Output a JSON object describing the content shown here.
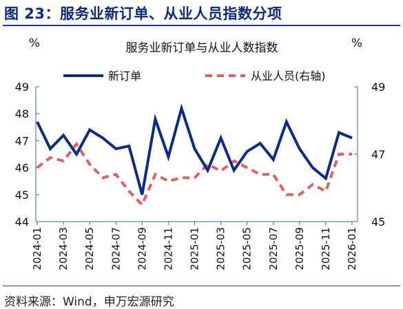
{
  "figure_title": "图 23：服务业新订单、从业人员指数分项",
  "source_note": "资料来源：Wind，申万宏源研究",
  "chart_data": {
    "type": "line",
    "title": "服务业新订单与从业人数指数",
    "left_unit": "%",
    "right_unit": "%",
    "x": [
      "2024-01",
      "2024-02",
      "2024-03",
      "2024-04",
      "2024-05",
      "2024-06",
      "2024-07",
      "2024-08",
      "2024-09",
      "2024-10",
      "2024-11",
      "2024-12",
      "2025-01",
      "2025-02",
      "2025-03",
      "2025-04",
      "2025-05",
      "2025-06",
      "2025-07",
      "2025-08",
      "2025-09",
      "2025-10",
      "2025-11",
      "2025-12",
      "2026-01"
    ],
    "x_tick_labels": [
      "2024-01",
      "2024-03",
      "2024-05",
      "2024-07",
      "2024-09",
      "2024-11",
      "2025-01",
      "2025-03",
      "2025-05",
      "2025-07",
      "2025-09",
      "2025-11",
      "2026-01"
    ],
    "y_left_ticks": [
      "44",
      "45",
      "46",
      "47",
      "48",
      "49"
    ],
    "y_right_ticks": [
      "45",
      "47",
      "49"
    ],
    "ylim_left": [
      44,
      49
    ],
    "ylim_right": [
      45,
      49
    ],
    "legend_position": "top",
    "series": [
      {
        "name": "新订单",
        "axis": "left",
        "style": "solid",
        "color": "#0b2a8a",
        "values": [
          47.7,
          46.7,
          47.2,
          46.5,
          47.4,
          47.1,
          46.7,
          46.8,
          45.0,
          47.8,
          46.4,
          48.2,
          46.7,
          45.9,
          47.1,
          45.9,
          46.6,
          46.9,
          46.3,
          47.7,
          46.7,
          46.0,
          45.6,
          47.3,
          47.1
        ]
      },
      {
        "name": "从业人员(右轴)",
        "axis": "right",
        "style": "dashed",
        "color": "#e06060",
        "values": [
          46.6,
          46.9,
          46.8,
          47.3,
          46.7,
          46.3,
          46.4,
          45.9,
          45.5,
          46.4,
          46.2,
          46.3,
          46.3,
          46.7,
          46.5,
          46.8,
          46.6,
          46.4,
          46.4,
          45.8,
          45.8,
          46.1,
          45.9,
          47.0,
          47.0
        ]
      }
    ]
  }
}
